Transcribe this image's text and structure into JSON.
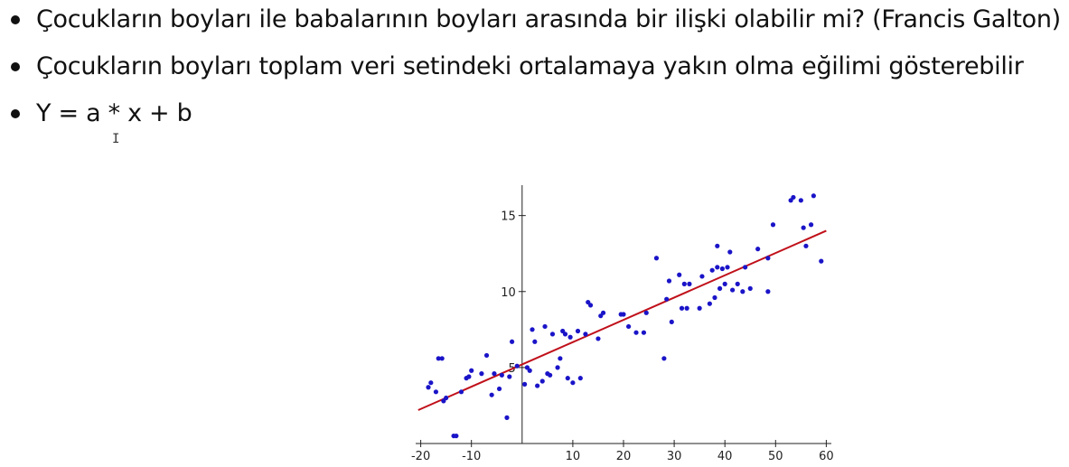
{
  "slide": {
    "bullets": [
      "Çocukların boyları ile babalarının boyları arasında bir ilişki olabilir mi? (Francis Galton)",
      "Çocukların boyları toplam veri setindeki ortalamaya yakın olma eğilimi gösterebilir",
      "Y = a * x + b"
    ],
    "cursor_icon": "text-cursor-icon"
  },
  "chart_data": {
    "type": "scatter",
    "title": "",
    "xlabel": "",
    "ylabel": "",
    "xlim": [
      -21,
      61
    ],
    "ylim": [
      0,
      17
    ],
    "x_ticks": [
      "-20",
      "-10",
      "10",
      "20",
      "30",
      "40",
      "50",
      "60"
    ],
    "y_ticks": [
      "5",
      "10",
      "15"
    ],
    "grid": false,
    "colors": {
      "points": "#1a14c8",
      "line": "#c0101a",
      "axis": "#222222"
    },
    "series": [
      {
        "type": "scatter",
        "points": [
          [
            -18.5,
            3.7
          ],
          [
            -18,
            4.0
          ],
          [
            -17,
            3.4
          ],
          [
            -16.5,
            5.6
          ],
          [
            -15.8,
            5.6
          ],
          [
            -15.5,
            2.8
          ],
          [
            -15,
            3.0
          ],
          [
            -13.5,
            0.5
          ],
          [
            -13,
            0.5
          ],
          [
            -12,
            3.4
          ],
          [
            -11,
            4.3
          ],
          [
            -10.5,
            4.4
          ],
          [
            -10,
            4.8
          ],
          [
            -8,
            4.6
          ],
          [
            -7,
            5.8
          ],
          [
            -6,
            3.2
          ],
          [
            -5.5,
            4.6
          ],
          [
            -4.5,
            3.6
          ],
          [
            -4,
            4.5
          ],
          [
            -3,
            1.7
          ],
          [
            -2.5,
            4.4
          ],
          [
            -2,
            6.7
          ],
          [
            -1,
            5.1
          ],
          [
            0.5,
            3.9
          ],
          [
            1,
            5.0
          ],
          [
            1.5,
            4.8
          ],
          [
            2,
            7.5
          ],
          [
            2.5,
            6.7
          ],
          [
            3,
            3.8
          ],
          [
            4,
            4.1
          ],
          [
            4.5,
            7.7
          ],
          [
            5,
            4.6
          ],
          [
            5.5,
            4.5
          ],
          [
            6,
            7.2
          ],
          [
            7,
            5.0
          ],
          [
            7.5,
            5.6
          ],
          [
            8,
            7.4
          ],
          [
            8.5,
            7.2
          ],
          [
            9,
            4.3
          ],
          [
            9.5,
            7.0
          ],
          [
            10,
            4.0
          ],
          [
            11,
            7.4
          ],
          [
            11.5,
            4.3
          ],
          [
            12.5,
            7.2
          ],
          [
            13,
            9.3
          ],
          [
            13.5,
            9.1
          ],
          [
            15,
            6.9
          ],
          [
            15.5,
            8.4
          ],
          [
            16,
            8.6
          ],
          [
            19.5,
            8.5
          ],
          [
            20,
            8.5
          ],
          [
            21,
            7.7
          ],
          [
            22.5,
            7.3
          ],
          [
            24,
            7.3
          ],
          [
            24.5,
            8.6
          ],
          [
            26.5,
            12.2
          ],
          [
            28,
            5.6
          ],
          [
            28.5,
            9.5
          ],
          [
            29,
            10.7
          ],
          [
            29.5,
            8.0
          ],
          [
            31,
            11.1
          ],
          [
            31.5,
            8.9
          ],
          [
            32,
            10.5
          ],
          [
            32.5,
            8.9
          ],
          [
            33,
            10.5
          ],
          [
            35,
            8.9
          ],
          [
            35.5,
            11.0
          ],
          [
            37,
            9.2
          ],
          [
            37.5,
            11.4
          ],
          [
            38,
            9.6
          ],
          [
            38.5,
            11.6
          ],
          [
            38.5,
            13.0
          ],
          [
            39,
            10.2
          ],
          [
            39.5,
            11.5
          ],
          [
            40,
            10.5
          ],
          [
            40.5,
            11.6
          ],
          [
            41,
            12.6
          ],
          [
            41.5,
            10.1
          ],
          [
            42.5,
            10.5
          ],
          [
            43.5,
            10.0
          ],
          [
            44,
            11.6
          ],
          [
            45,
            10.2
          ],
          [
            46.5,
            12.8
          ],
          [
            48.5,
            12.2
          ],
          [
            48.5,
            10.0
          ],
          [
            49.5,
            14.4
          ],
          [
            53,
            16.0
          ],
          [
            53.5,
            16.2
          ],
          [
            55,
            16.0
          ],
          [
            55.5,
            14.2
          ],
          [
            56,
            13.0
          ],
          [
            57,
            14.4
          ],
          [
            57.5,
            16.3
          ],
          [
            59,
            12.0
          ]
        ]
      },
      {
        "type": "line",
        "points": [
          [
            -20.5,
            2.2
          ],
          [
            60,
            14.0
          ]
        ]
      }
    ]
  }
}
